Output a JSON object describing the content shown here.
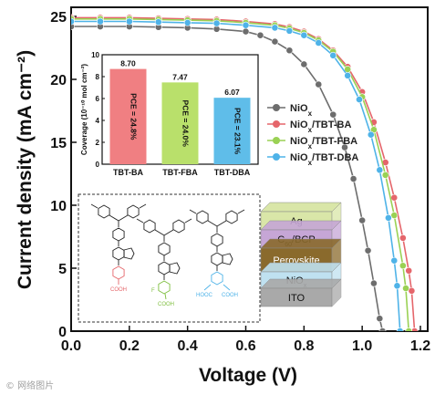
{
  "chart_data": [
    {
      "type": "line",
      "title": "",
      "xlabel": "Voltage (V)",
      "ylabel": "Current density (mA cm⁻²)",
      "xlim": [
        0.0,
        1.2
      ],
      "ylim": [
        0,
        25
      ],
      "xticks": [
        "0.0",
        "0.2",
        "0.4",
        "0.6",
        "0.8",
        "1.0",
        "1.2"
      ],
      "yticks": [
        "0",
        "5",
        "10",
        "15",
        "20",
        "25"
      ],
      "legend_position": "right-middle",
      "series": [
        {
          "name": "NiO",
          "sub": "x",
          "suffix": "",
          "color": "#6d6d6d",
          "x": [
            0.0,
            0.1,
            0.2,
            0.3,
            0.4,
            0.5,
            0.6,
            0.65,
            0.7,
            0.75,
            0.8,
            0.85,
            0.9,
            0.94,
            0.97,
            1.0,
            1.02,
            1.04,
            1.06,
            1.07
          ],
          "y": [
            24.2,
            24.2,
            24.2,
            24.15,
            24.1,
            24.0,
            23.8,
            23.5,
            23.0,
            22.3,
            21.2,
            19.6,
            17.2,
            14.6,
            12.1,
            8.8,
            6.4,
            3.8,
            1.0,
            0
          ]
        },
        {
          "name": "NiO",
          "sub": "x",
          "suffix": "/TBT-BA",
          "color": "#e5666b",
          "x": [
            0.0,
            0.1,
            0.2,
            0.3,
            0.4,
            0.5,
            0.6,
            0.7,
            0.75,
            0.8,
            0.85,
            0.9,
            0.95,
            1.0,
            1.04,
            1.08,
            1.11,
            1.14,
            1.16,
            1.17,
            1.18
          ],
          "y": [
            24.9,
            24.9,
            24.9,
            24.85,
            24.8,
            24.75,
            24.6,
            24.4,
            24.15,
            23.8,
            23.2,
            22.3,
            21.0,
            19.0,
            16.6,
            13.4,
            10.6,
            7.4,
            4.8,
            3.2,
            0
          ]
        },
        {
          "name": "NiO",
          "sub": "x",
          "suffix": "/TBT-FBA",
          "color": "#9ad154",
          "x": [
            0.0,
            0.1,
            0.2,
            0.3,
            0.4,
            0.5,
            0.6,
            0.7,
            0.75,
            0.8,
            0.85,
            0.9,
            0.95,
            1.0,
            1.04,
            1.08,
            1.11,
            1.14,
            1.15,
            1.16
          ],
          "y": [
            24.8,
            24.8,
            24.8,
            24.75,
            24.7,
            24.65,
            24.5,
            24.3,
            24.05,
            23.7,
            23.1,
            22.2,
            20.8,
            18.6,
            16.0,
            12.4,
            9.2,
            5.2,
            3.4,
            0
          ]
        },
        {
          "name": "NiO",
          "sub": "x",
          "suffix": "/TBT-DBA",
          "color": "#4fb3e8",
          "x": [
            0.0,
            0.1,
            0.2,
            0.3,
            0.4,
            0.5,
            0.6,
            0.7,
            0.75,
            0.8,
            0.85,
            0.9,
            0.95,
            0.99,
            1.03,
            1.06,
            1.09,
            1.11,
            1.12,
            1.13
          ],
          "y": [
            24.6,
            24.6,
            24.6,
            24.55,
            24.5,
            24.45,
            24.3,
            24.1,
            23.85,
            23.5,
            22.9,
            21.9,
            20.3,
            18.4,
            15.6,
            12.8,
            9.0,
            5.6,
            3.6,
            0
          ]
        }
      ]
    },
    {
      "type": "bar",
      "title": "",
      "xlabel": "",
      "ylabel": "Coverage (10⁻¹⁰ mol cm⁻²)",
      "ylim": [
        0,
        10
      ],
      "yticks": [
        "0",
        "2",
        "4",
        "6",
        "8",
        "10"
      ],
      "categories": [
        "TBT-BA",
        "TBT-FBA",
        "TBT-DBA"
      ],
      "values": [
        8.7,
        7.47,
        6.07
      ],
      "value_labels": [
        "8.70",
        "7.47",
        "6.07"
      ],
      "bar_labels": [
        "PCE = 24.8%",
        "PCE = 24.0%",
        "PCE = 23.1%"
      ],
      "colors": [
        "#f07f82",
        "#b9e06b",
        "#5fbde9"
      ]
    }
  ],
  "device_stack": {
    "layers": [
      {
        "label": "Ag",
        "color": "#d9e6a8"
      },
      {
        "label": "C60/BCP",
        "color": "#c6a6d6"
      },
      {
        "label": "Perovskite",
        "color": "#8a6a2c"
      },
      {
        "label": "NiOx",
        "color": "#bfe1f0"
      },
      {
        "label": "ITO",
        "color": "#a9a9a9"
      }
    ]
  },
  "molecules": {
    "groups": [
      "COOH",
      "COOH",
      "HOOC",
      "COOH"
    ],
    "fluorine": "F",
    "colors": {
      "ba": "#e5666b",
      "fba": "#7fbf3f",
      "dba": "#4fb3e8"
    }
  },
  "watermark": "© 网络图片"
}
